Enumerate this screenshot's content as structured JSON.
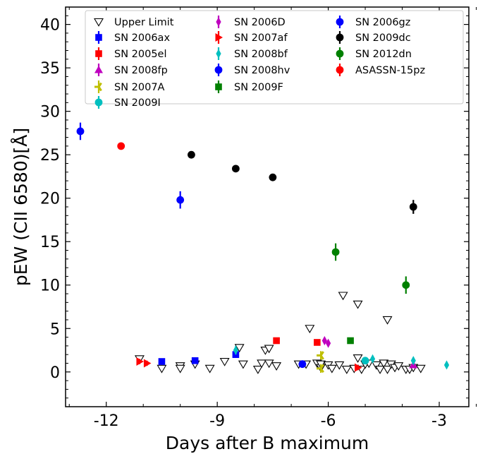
{
  "chart_data": {
    "type": "scatter",
    "xlabel": "Days after B maximum",
    "ylabel": "pEW (CII 6580)[Å]",
    "xlim": [
      -13.1,
      -2.2
    ],
    "ylim": [
      -4,
      42
    ],
    "x_ticks": [
      -12,
      -9,
      -6,
      -3
    ],
    "x_tick_labels": [
      "-12",
      "-9",
      "-6",
      "-3"
    ],
    "y_ticks": [
      0,
      5,
      10,
      15,
      20,
      25,
      30,
      35,
      40
    ],
    "y_tick_labels": [
      "0",
      "5",
      "10",
      "15",
      "20",
      "25",
      "30",
      "35",
      "40"
    ],
    "grid": false,
    "legend": {
      "placement": "top",
      "columns": 3
    },
    "series": [
      {
        "name": "Upper Limit",
        "color": "#000000",
        "marker": "triangle-down-open",
        "points": [
          {
            "x": -11.1,
            "y": 1.5
          },
          {
            "x": -10.5,
            "y": 0.4
          },
          {
            "x": -10.0,
            "y": 0.7
          },
          {
            "x": -10.0,
            "y": 0.4
          },
          {
            "x": -9.6,
            "y": 0.9
          },
          {
            "x": -9.2,
            "y": 0.4
          },
          {
            "x": -8.8,
            "y": 1.2
          },
          {
            "x": -8.4,
            "y": 2.8
          },
          {
            "x": -8.3,
            "y": 0.9
          },
          {
            "x": -7.9,
            "y": 0.3
          },
          {
            "x": -7.8,
            "y": 1.0
          },
          {
            "x": -7.7,
            "y": 2.5
          },
          {
            "x": -7.6,
            "y": 2.7
          },
          {
            "x": -7.6,
            "y": 1.0
          },
          {
            "x": -7.4,
            "y": 0.7
          },
          {
            "x": -6.8,
            "y": 0.9
          },
          {
            "x": -6.6,
            "y": 0.9
          },
          {
            "x": -6.5,
            "y": 5.0
          },
          {
            "x": -6.3,
            "y": 1.0
          },
          {
            "x": -6.2,
            "y": 0.5
          },
          {
            "x": -6.2,
            "y": 0.9
          },
          {
            "x": -6.0,
            "y": 0.8
          },
          {
            "x": -5.9,
            "y": 0.4
          },
          {
            "x": -5.7,
            "y": 0.8
          },
          {
            "x": -5.6,
            "y": 8.8
          },
          {
            "x": -5.5,
            "y": 0.3
          },
          {
            "x": -5.3,
            "y": 0.4
          },
          {
            "x": -5.2,
            "y": 7.8
          },
          {
            "x": -5.2,
            "y": 1.6
          },
          {
            "x": -5.1,
            "y": 0.3
          },
          {
            "x": -5.0,
            "y": 0.9
          },
          {
            "x": -4.9,
            "y": 1.0
          },
          {
            "x": -4.7,
            "y": 0.8
          },
          {
            "x": -4.6,
            "y": 0.3
          },
          {
            "x": -4.5,
            "y": 1.0
          },
          {
            "x": -4.4,
            "y": 6.0
          },
          {
            "x": -4.4,
            "y": 0.3
          },
          {
            "x": -4.3,
            "y": 0.9
          },
          {
            "x": -4.2,
            "y": 0.5
          },
          {
            "x": -4.1,
            "y": 0.7
          },
          {
            "x": -3.9,
            "y": 0.3
          },
          {
            "x": -3.8,
            "y": 0.3
          },
          {
            "x": -3.7,
            "y": 0.5
          },
          {
            "x": -3.5,
            "y": 0.4
          }
        ]
      },
      {
        "name": "SN 2006ax",
        "color": "#0000ff",
        "marker": "square",
        "points": [
          {
            "x": -10.5,
            "y": 1.2,
            "err": 0.3
          },
          {
            "x": -9.6,
            "y": 1.3,
            "err": 0.3
          },
          {
            "x": -8.5,
            "y": 2.0,
            "err": 0.3
          }
        ]
      },
      {
        "name": "SN 2005el",
        "color": "#ff0000",
        "marker": "square",
        "points": [
          {
            "x": -7.4,
            "y": 3.6,
            "err": 0.3
          },
          {
            "x": -6.3,
            "y": 3.4,
            "err": 0.3
          }
        ]
      },
      {
        "name": "SN 2008fp",
        "color": "#bf00bf",
        "marker": "triangle-up",
        "points": [
          {
            "x": -3.7,
            "y": 0.8,
            "err": 0.3
          }
        ]
      },
      {
        "name": "SN 2007A",
        "color": "#bfbf00",
        "marker": "tri-left",
        "points": [
          {
            "x": -6.2,
            "y": 1.9,
            "err": 0.5
          },
          {
            "x": -6.2,
            "y": 0.4,
            "err": 0.5
          }
        ]
      },
      {
        "name": "SN 2009I",
        "color": "#00bfbf",
        "marker": "circle",
        "points": [
          {
            "x": -5.0,
            "y": 1.3,
            "err": 0.3
          }
        ]
      },
      {
        "name": "SN 2006D",
        "color": "#bf00bf",
        "marker": "diamond-thin",
        "points": [
          {
            "x": -6.1,
            "y": 3.6,
            "err": 0.3
          },
          {
            "x": -6.0,
            "y": 3.3,
            "err": 0.3
          }
        ]
      },
      {
        "name": "SN 2007af",
        "color": "#ff0000",
        "marker": "triangle-right",
        "points": [
          {
            "x": -11.1,
            "y": 1.2,
            "err": 0.3
          },
          {
            "x": -10.9,
            "y": 1.0,
            "err": 0.3
          },
          {
            "x": -5.2,
            "y": 0.5,
            "err": 0.3
          }
        ]
      },
      {
        "name": "SN 2008bf",
        "color": "#00bfbf",
        "marker": "diamond-thin",
        "points": [
          {
            "x": -8.5,
            "y": 2.5,
            "err": 0.5
          },
          {
            "x": -4.8,
            "y": 1.5,
            "err": 0.3
          },
          {
            "x": -3.7,
            "y": 1.3,
            "err": 0.4
          },
          {
            "x": -2.8,
            "y": 0.8,
            "err": 0.3
          }
        ]
      },
      {
        "name": "SN 2008hv",
        "color": "#0000ff",
        "marker": "circle",
        "points": [
          {
            "x": -6.7,
            "y": 0.9,
            "err": 0.3
          }
        ]
      },
      {
        "name": "SN 2009F",
        "color": "#008000",
        "marker": "square",
        "points": [
          {
            "x": -5.4,
            "y": 3.6,
            "err": 0.3
          }
        ]
      },
      {
        "name": "SN 2006gz",
        "color": "#0000ff",
        "marker": "circle",
        "points": [
          {
            "x": -12.7,
            "y": 27.7,
            "err": 1.0
          },
          {
            "x": -10.0,
            "y": 19.8,
            "err": 1.0
          }
        ]
      },
      {
        "name": "SN 2009dc",
        "color": "#000000",
        "marker": "circle",
        "points": [
          {
            "x": -9.7,
            "y": 25.0,
            "err": 0.4
          },
          {
            "x": -8.5,
            "y": 23.4,
            "err": 0.4
          },
          {
            "x": -7.5,
            "y": 22.4,
            "err": 0.4
          },
          {
            "x": -3.7,
            "y": 19.0,
            "err": 0.8
          }
        ]
      },
      {
        "name": "SN 2012dn",
        "color": "#008000",
        "marker": "circle",
        "points": [
          {
            "x": -5.8,
            "y": 13.8,
            "err": 1.0
          },
          {
            "x": -3.9,
            "y": 10.0,
            "err": 1.0
          }
        ]
      },
      {
        "name": "ASASSN-15pz",
        "color": "#ff0000",
        "marker": "circle",
        "points": [
          {
            "x": -11.6,
            "y": 26.0,
            "err": 0.3
          }
        ]
      }
    ]
  }
}
